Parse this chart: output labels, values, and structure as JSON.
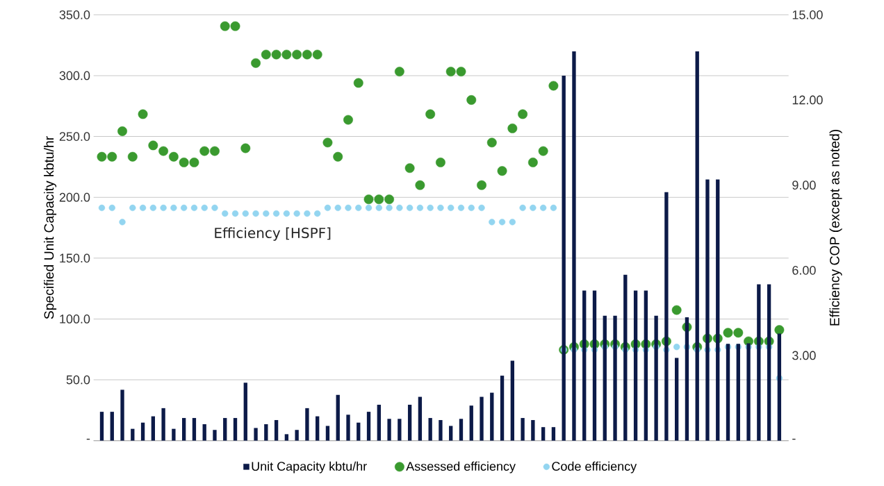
{
  "chart_data": {
    "type": "bar",
    "ylabel": "Specified Unit Capacity kbtu/hr",
    "y2label": "Efficiency COP (except as noted)",
    "annotations": [
      "Efficiency [HSPF]"
    ],
    "categories": [
      null,
      null,
      null,
      null,
      null,
      null,
      null,
      null,
      null,
      null,
      null,
      null,
      null,
      null,
      null,
      null,
      null,
      null,
      null,
      null,
      null,
      null,
      null,
      null,
      null,
      null,
      null,
      null,
      null,
      null,
      null,
      null,
      null,
      null,
      null,
      null,
      null,
      null,
      null,
      null,
      null,
      null,
      null,
      null,
      null,
      null,
      null,
      null,
      null,
      null,
      null,
      null,
      null,
      null,
      null,
      null,
      null,
      null,
      null,
      null,
      null,
      null,
      null,
      null,
      null,
      null,
      null
    ],
    "series": [
      {
        "name": "Unit Capacity kbtu/hr",
        "color": "#0c1a48",
        "values": [
          23.7,
          23.7,
          41.8,
          9.7,
          14.8,
          20.0,
          26.7,
          9.7,
          18.6,
          18.6,
          13.5,
          8.8,
          18.6,
          18.6,
          47.6,
          10.4,
          13.5,
          16.9,
          5.3,
          8.8,
          26.7,
          20.0,
          12.1,
          37.6,
          21.3,
          14.8,
          23.7,
          29.5,
          17.9,
          17.9,
          29.5,
          36.0,
          18.6,
          16.9,
          12.1,
          17.9,
          28.8,
          36.0,
          39.4,
          53.4,
          65.7,
          18.6,
          16.9,
          11.1,
          11.1,
          300,
          320,
          123.4,
          123.4,
          102.6,
          102.6,
          136.4,
          123.4,
          123.4,
          102.6,
          204.2,
          68.0,
          101.4,
          320,
          214.6,
          214.6,
          79.6,
          79.6,
          80,
          128.5,
          128.5,
          88
        ]
      },
      {
        "name": "Assessed efficiency",
        "type": "scatter",
        "axis": "y2",
        "color": "#3a9a2f",
        "values": [
          10.0,
          10.0,
          10.9,
          10.0,
          11.5,
          10.4,
          10.2,
          10.0,
          9.8,
          9.8,
          10.2,
          10.2,
          14.6,
          14.6,
          10.3,
          13.3,
          13.6,
          13.6,
          13.6,
          13.6,
          13.6,
          13.6,
          10.5,
          10.0,
          11.3,
          12.6,
          8.5,
          8.5,
          8.5,
          13.0,
          9.6,
          9.0,
          11.5,
          9.8,
          13.0,
          13.0,
          12.0,
          9.0,
          10.5,
          9.5,
          11.0,
          11.5,
          9.8,
          10.2,
          12.5,
          3.2,
          3.3,
          3.4,
          3.4,
          3.4,
          3.4,
          3.3,
          3.4,
          3.4,
          3.4,
          3.5,
          4.6,
          4.0,
          3.3,
          3.6,
          3.6,
          3.8,
          3.8,
          3.5,
          3.5,
          3.5,
          3.9
        ]
      },
      {
        "name": "Code efficiency",
        "type": "scatter",
        "axis": "y2",
        "color": "#93d5f0",
        "values": [
          8.2,
          8.2,
          7.7,
          8.2,
          8.2,
          8.2,
          8.2,
          8.2,
          8.2,
          8.2,
          8.2,
          8.2,
          8.0,
          8.0,
          8.0,
          8.0,
          8.0,
          8.0,
          8.0,
          8.0,
          8.0,
          8.0,
          8.2,
          8.2,
          8.2,
          8.2,
          8.2,
          8.2,
          8.2,
          8.2,
          8.2,
          8.2,
          8.2,
          8.2,
          8.2,
          8.2,
          8.2,
          8.2,
          7.7,
          7.7,
          7.7,
          8.2,
          8.2,
          8.2,
          8.2,
          3.2,
          3.2,
          3.2,
          3.2,
          3.3,
          3.3,
          3.2,
          3.2,
          3.2,
          3.3,
          3.2,
          3.3,
          3.3,
          3.2,
          3.2,
          3.2,
          3.3,
          3.3,
          3.3,
          3.3,
          3.3,
          2.2
        ]
      }
    ],
    "ylim": [
      0,
      350
    ],
    "yticks": [
      {
        "value": 0,
        "label": "-"
      },
      {
        "value": 50,
        "label": "50.0"
      },
      {
        "value": 100,
        "label": "100.0"
      },
      {
        "value": 150,
        "label": "150.0"
      },
      {
        "value": 200,
        "label": "200.0"
      },
      {
        "value": 250,
        "label": "250.0"
      },
      {
        "value": 300,
        "label": "300.0"
      },
      {
        "value": 350,
        "label": "350.0"
      }
    ],
    "y2lim": [
      0,
      15
    ],
    "y2ticks": [
      {
        "value": 0,
        "label": "-"
      },
      {
        "value": 3,
        "label": "3.00"
      },
      {
        "value": 6,
        "label": "6.00"
      },
      {
        "value": 9,
        "label": "9.00"
      },
      {
        "value": 12,
        "label": "12.00"
      },
      {
        "value": 15,
        "label": "15.00"
      }
    ],
    "grid": "y",
    "legend": "bottom"
  }
}
